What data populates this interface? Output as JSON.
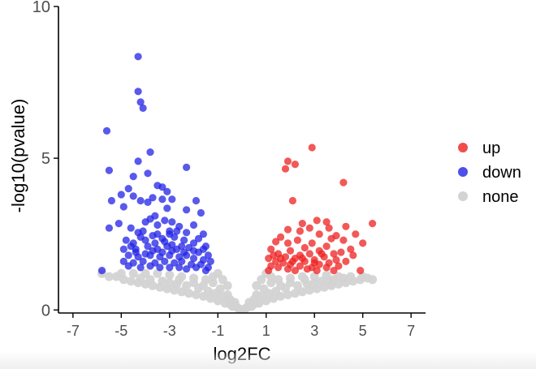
{
  "chart_data": {
    "type": "scatter",
    "xlabel": "log2FC",
    "ylabel": "-log10(pvalue)",
    "xlim": [
      -7.6,
      7.6
    ],
    "ylim": [
      -0.1,
      10
    ],
    "x_ticks": [
      -7,
      -5,
      -3,
      -1,
      1,
      3,
      5,
      7
    ],
    "y_ticks": [
      0,
      5,
      10
    ],
    "x_tick_labels": [
      "-7",
      "-5",
      "-3",
      "-1",
      "1",
      "3",
      "5",
      "7"
    ],
    "y_tick_labels": [
      "0",
      "5",
      "10"
    ],
    "grid": false,
    "legend_placement": "right",
    "legend": [
      {
        "name": "up",
        "color": "#ee2020"
      },
      {
        "name": "down",
        "color": "#2222e6"
      },
      {
        "name": "none",
        "color": "#d3d3d3"
      }
    ],
    "series": [
      {
        "name": "none",
        "color": "#d3d3d3",
        "points": [
          [
            -5.8,
            1.2
          ],
          [
            -5.5,
            1.1
          ],
          [
            -5.2,
            1.1
          ],
          [
            -4.9,
            1.0
          ],
          [
            -4.6,
            0.95
          ],
          [
            -4.3,
            0.9
          ],
          [
            -4.0,
            0.85
          ],
          [
            -3.7,
            0.8
          ],
          [
            -3.4,
            0.75
          ],
          [
            -3.1,
            0.7
          ],
          [
            -2.8,
            0.65
          ],
          [
            -2.5,
            0.6
          ],
          [
            -2.2,
            0.55
          ],
          [
            -1.9,
            0.5
          ],
          [
            -1.6,
            0.45
          ],
          [
            -1.3,
            0.38
          ],
          [
            -1.0,
            0.3
          ],
          [
            -0.7,
            0.22
          ],
          [
            -0.4,
            0.12
          ],
          [
            -0.1,
            0.03
          ],
          [
            -5.0,
            1.2
          ],
          [
            -4.5,
            1.2
          ],
          [
            -4.0,
            1.2
          ],
          [
            -3.5,
            1.2
          ],
          [
            -3.0,
            1.15
          ],
          [
            -2.5,
            1.1
          ],
          [
            -2.0,
            1.05
          ],
          [
            -1.5,
            1.0
          ],
          [
            -1.2,
            0.9
          ],
          [
            -0.9,
            0.7
          ],
          [
            -0.6,
            0.5
          ],
          [
            -0.3,
            0.25
          ],
          [
            -4.2,
            1.05
          ],
          [
            -3.8,
            1.0
          ],
          [
            -3.3,
            0.95
          ],
          [
            -2.7,
            0.85
          ],
          [
            -2.3,
            0.8
          ],
          [
            -1.8,
            0.72
          ],
          [
            -1.4,
            0.62
          ],
          [
            -1.1,
            0.55
          ],
          [
            -0.8,
            0.45
          ],
          [
            -0.5,
            0.35
          ],
          [
            -3.0,
            0.9
          ],
          [
            -2.6,
            1.0
          ],
          [
            -2.0,
            0.9
          ],
          [
            -1.6,
            0.8
          ],
          [
            -1.2,
            1.1
          ],
          [
            -1.0,
            1.2
          ],
          [
            -0.8,
            1.0
          ],
          [
            -0.6,
            0.8
          ],
          [
            0.1,
            0.03
          ],
          [
            0.4,
            0.12
          ],
          [
            0.7,
            0.22
          ],
          [
            1.0,
            0.3
          ],
          [
            1.3,
            0.38
          ],
          [
            1.6,
            0.45
          ],
          [
            1.9,
            0.5
          ],
          [
            2.2,
            0.55
          ],
          [
            2.5,
            0.6
          ],
          [
            2.8,
            0.65
          ],
          [
            3.1,
            0.7
          ],
          [
            3.4,
            0.75
          ],
          [
            3.7,
            0.8
          ],
          [
            4.0,
            0.85
          ],
          [
            4.3,
            0.9
          ],
          [
            4.6,
            0.95
          ],
          [
            4.9,
            1.0
          ],
          [
            5.2,
            1.05
          ],
          [
            5.4,
            1.0
          ],
          [
            0.3,
            0.25
          ],
          [
            0.6,
            0.5
          ],
          [
            0.9,
            0.7
          ],
          [
            1.2,
            0.9
          ],
          [
            1.5,
            1.0
          ],
          [
            2.0,
            1.05
          ],
          [
            2.5,
            1.1
          ],
          [
            3.0,
            1.1
          ],
          [
            3.5,
            1.15
          ],
          [
            4.0,
            1.1
          ],
          [
            4.5,
            1.1
          ],
          [
            5.0,
            1.1
          ],
          [
            0.5,
            0.35
          ],
          [
            0.8,
            0.45
          ],
          [
            1.1,
            0.55
          ],
          [
            1.4,
            0.62
          ],
          [
            1.8,
            0.72
          ],
          [
            2.3,
            0.8
          ],
          [
            2.7,
            0.85
          ],
          [
            3.3,
            0.95
          ],
          [
            3.8,
            1.0
          ],
          [
            4.2,
            1.05
          ],
          [
            0.6,
            0.8
          ],
          [
            0.8,
            1.0
          ],
          [
            1.0,
            1.2
          ],
          [
            1.2,
            1.1
          ],
          [
            1.6,
            0.8
          ],
          [
            2.0,
            0.9
          ],
          [
            2.6,
            1.0
          ],
          [
            3.0,
            0.9
          ],
          [
            3.6,
            0.95
          ],
          [
            -0.2,
            0.08
          ],
          [
            0.2,
            0.08
          ],
          [
            -0.3,
            0.15
          ],
          [
            0.3,
            0.15
          ],
          [
            -0.5,
            0.2
          ],
          [
            0.5,
            0.2
          ]
        ]
      },
      {
        "name": "down",
        "color": "#2222e6",
        "points": [
          [
            -4.3,
            8.35
          ],
          [
            -4.3,
            7.2
          ],
          [
            -4.2,
            6.85
          ],
          [
            -4.1,
            6.65
          ],
          [
            -5.6,
            5.9
          ],
          [
            -3.8,
            5.2
          ],
          [
            -4.3,
            4.9
          ],
          [
            -5.5,
            4.6
          ],
          [
            -2.3,
            4.7
          ],
          [
            -3.9,
            4.5
          ],
          [
            -4.5,
            4.4
          ],
          [
            -3.5,
            4.1
          ],
          [
            -3.3,
            4.05
          ],
          [
            -4.7,
            4.0
          ],
          [
            -3.1,
            3.9
          ],
          [
            -5.0,
            3.8
          ],
          [
            -4.5,
            3.75
          ],
          [
            -3.7,
            3.7
          ],
          [
            -3.3,
            3.65
          ],
          [
            -2.9,
            3.65
          ],
          [
            -1.9,
            3.6
          ],
          [
            -5.4,
            3.6
          ],
          [
            -4.2,
            3.6
          ],
          [
            -3.9,
            3.55
          ],
          [
            -4.9,
            3.4
          ],
          [
            -3.1,
            3.35
          ],
          [
            -2.3,
            3.3
          ],
          [
            -1.7,
            3.2
          ],
          [
            -3.6,
            3.1
          ],
          [
            -3.8,
            3.0
          ],
          [
            -4.6,
            2.7
          ],
          [
            -5.1,
            2.85
          ],
          [
            -5.5,
            2.7
          ],
          [
            -4.0,
            2.9
          ],
          [
            -2.9,
            2.9
          ],
          [
            -3.2,
            2.95
          ],
          [
            -3.5,
            2.8
          ],
          [
            -2.6,
            2.75
          ],
          [
            -2.0,
            2.8
          ],
          [
            -4.1,
            2.6
          ],
          [
            -3.0,
            2.6
          ],
          [
            -2.3,
            2.55
          ],
          [
            -1.6,
            2.5
          ],
          [
            -4.8,
            2.3
          ],
          [
            -4.5,
            2.2
          ],
          [
            -4.2,
            2.4
          ],
          [
            -3.7,
            2.45
          ],
          [
            -3.3,
            2.35
          ],
          [
            -2.8,
            2.4
          ],
          [
            -2.4,
            2.3
          ],
          [
            -2.0,
            2.2
          ],
          [
            -1.8,
            2.35
          ],
          [
            -1.5,
            2.1
          ],
          [
            -4.9,
            2.0
          ],
          [
            -4.4,
            2.0
          ],
          [
            -3.9,
            2.1
          ],
          [
            -3.5,
            2.0
          ],
          [
            -3.1,
            2.1
          ],
          [
            -2.7,
            2.0
          ],
          [
            -2.2,
            2.05
          ],
          [
            -1.8,
            1.9
          ],
          [
            -1.4,
            1.8
          ],
          [
            -4.7,
            1.8
          ],
          [
            -4.3,
            1.75
          ],
          [
            -3.8,
            1.8
          ],
          [
            -3.4,
            1.75
          ],
          [
            -3.0,
            1.8
          ],
          [
            -2.6,
            1.75
          ],
          [
            -2.3,
            1.8
          ],
          [
            -2.0,
            1.7
          ],
          [
            -1.6,
            1.65
          ],
          [
            -1.3,
            1.6
          ],
          [
            -4.9,
            1.6
          ],
          [
            -4.5,
            1.55
          ],
          [
            -4.1,
            1.6
          ],
          [
            -3.6,
            1.55
          ],
          [
            -3.2,
            1.6
          ],
          [
            -2.8,
            1.55
          ],
          [
            -2.5,
            1.6
          ],
          [
            -2.1,
            1.5
          ],
          [
            -1.7,
            1.5
          ],
          [
            -1.4,
            1.4
          ],
          [
            -4.7,
            1.45
          ],
          [
            -4.2,
            1.4
          ],
          [
            -3.8,
            1.45
          ],
          [
            -3.4,
            1.4
          ],
          [
            -3.0,
            1.4
          ],
          [
            -2.6,
            1.4
          ],
          [
            -2.3,
            1.35
          ],
          [
            -1.9,
            1.4
          ],
          [
            -1.5,
            1.3
          ],
          [
            -5.8,
            1.3
          ],
          [
            -4.0,
            2.3
          ],
          [
            -3.6,
            2.2
          ],
          [
            -3.2,
            2.25
          ],
          [
            -2.9,
            2.15
          ],
          [
            -2.5,
            2.1
          ],
          [
            -4.6,
            2.1
          ],
          [
            -3.7,
            1.95
          ],
          [
            -3.3,
            1.9
          ],
          [
            -2.9,
            1.95
          ],
          [
            -2.4,
            1.9
          ],
          [
            -2.0,
            1.95
          ],
          [
            -1.6,
            2.0
          ],
          [
            -4.4,
            1.9
          ],
          [
            -4.0,
            1.85
          ],
          [
            -3.5,
            2.5
          ],
          [
            -3.0,
            2.5
          ],
          [
            -2.7,
            2.6
          ],
          [
            -4.3,
            2.55
          ]
        ]
      },
      {
        "name": "up",
        "color": "#ee2020",
        "points": [
          [
            2.9,
            5.35
          ],
          [
            1.9,
            4.9
          ],
          [
            2.2,
            4.8
          ],
          [
            1.8,
            4.65
          ],
          [
            4.2,
            4.2
          ],
          [
            2.1,
            3.6
          ],
          [
            3.1,
            2.95
          ],
          [
            2.5,
            2.85
          ],
          [
            3.5,
            2.9
          ],
          [
            5.4,
            2.85
          ],
          [
            4.3,
            2.75
          ],
          [
            3.6,
            2.7
          ],
          [
            2.8,
            2.7
          ],
          [
            2.4,
            2.6
          ],
          [
            1.9,
            2.65
          ],
          [
            4.7,
            2.5
          ],
          [
            3.9,
            2.45
          ],
          [
            3.2,
            2.5
          ],
          [
            1.6,
            2.4
          ],
          [
            2.3,
            2.3
          ],
          [
            3.7,
            2.35
          ],
          [
            4.2,
            2.3
          ],
          [
            5.0,
            2.2
          ],
          [
            2.9,
            2.2
          ],
          [
            1.4,
            2.25
          ],
          [
            1.9,
            2.2
          ],
          [
            3.5,
            2.1
          ],
          [
            4.5,
            2.0
          ],
          [
            2.6,
            2.05
          ],
          [
            1.2,
            2.0
          ],
          [
            2.0,
            1.95
          ],
          [
            3.2,
            1.95
          ],
          [
            4.1,
            1.9
          ],
          [
            3.8,
            1.85
          ],
          [
            1.5,
            1.85
          ],
          [
            2.4,
            1.8
          ],
          [
            2.8,
            1.85
          ],
          [
            4.6,
            1.8
          ],
          [
            1.8,
            1.75
          ],
          [
            3.4,
            1.75
          ],
          [
            1.1,
            1.7
          ],
          [
            2.2,
            1.7
          ],
          [
            3.0,
            1.65
          ],
          [
            3.9,
            1.65
          ],
          [
            1.4,
            1.6
          ],
          [
            2.6,
            1.6
          ],
          [
            3.6,
            1.55
          ],
          [
            4.3,
            1.6
          ],
          [
            1.7,
            1.55
          ],
          [
            2.0,
            1.5
          ],
          [
            3.2,
            1.5
          ],
          [
            1.2,
            1.45
          ],
          [
            2.4,
            1.45
          ],
          [
            2.9,
            1.4
          ],
          [
            3.5,
            1.4
          ],
          [
            4.0,
            1.45
          ],
          [
            1.5,
            1.4
          ],
          [
            1.9,
            1.35
          ],
          [
            2.7,
            1.35
          ],
          [
            3.8,
            1.3
          ],
          [
            4.9,
            1.3
          ],
          [
            1.1,
            1.3
          ],
          [
            2.2,
            1.3
          ],
          [
            3.1,
            1.3
          ],
          [
            1.6,
            1.7
          ],
          [
            2.5,
            1.7
          ],
          [
            3.3,
            1.85
          ],
          [
            1.3,
            1.8
          ],
          [
            2.1,
            1.6
          ],
          [
            3.0,
            1.55
          ]
        ]
      }
    ]
  }
}
